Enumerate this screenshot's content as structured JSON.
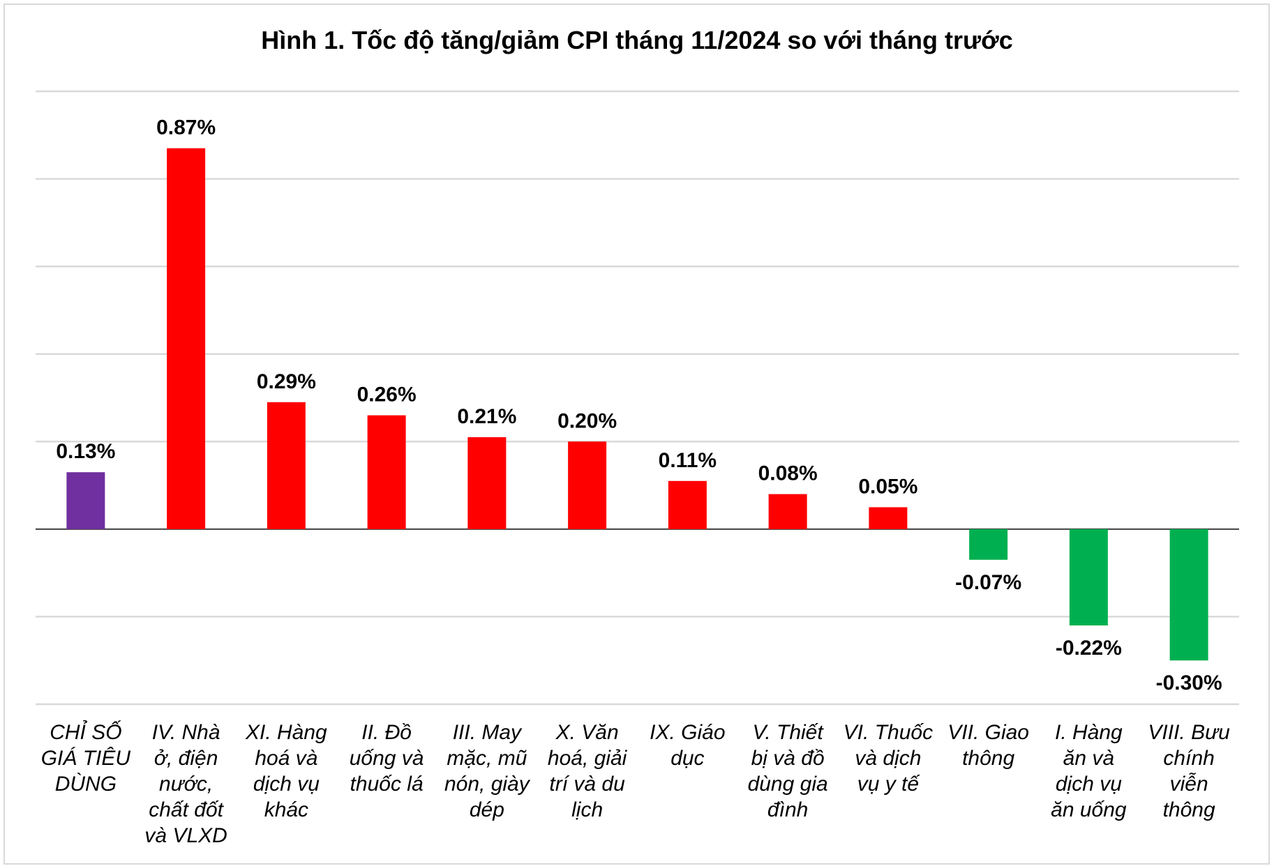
{
  "chart_data": {
    "type": "bar",
    "title": "Hình 1. Tốc độ tăng/giảm CPI tháng 11/2024 so với tháng trước",
    "xlabel": "",
    "ylabel": "",
    "ylim": [
      -0.4,
      1.0
    ],
    "grid": true,
    "categories": [
      [
        "CHỈ SỐ",
        "GIÁ TIÊU",
        "DÙNG"
      ],
      [
        "IV. Nhà",
        "ở, điện",
        "nước,",
        "chất đốt",
        "và VLXD"
      ],
      [
        "XI. Hàng",
        "hoá và",
        "dịch vụ",
        "khác"
      ],
      [
        "II. Đồ",
        "uống và",
        "thuốc lá"
      ],
      [
        "III. May",
        "mặc, mũ",
        "nón, giày",
        "dép"
      ],
      [
        "X. Văn",
        "hoá, giải",
        "trí và du",
        "lịch"
      ],
      [
        "IX. Giáo",
        "dục"
      ],
      [
        "V. Thiết",
        "bị và đồ",
        "dùng gia",
        "đình"
      ],
      [
        "VI. Thuốc",
        "và dịch",
        "vụ y tế"
      ],
      [
        "VII. Giao",
        "thông"
      ],
      [
        "I. Hàng",
        "ăn và",
        "dịch vụ",
        "ăn uống"
      ],
      [
        "VIII. Bưu",
        "chính",
        "viễn",
        "thông"
      ]
    ],
    "values": [
      0.13,
      0.87,
      0.29,
      0.26,
      0.21,
      0.2,
      0.11,
      0.08,
      0.05,
      -0.07,
      -0.22,
      -0.3
    ],
    "data_labels": [
      "0.13%",
      "0.87%",
      "0.29%",
      "0.26%",
      "0.21%",
      "0.20%",
      "0.11%",
      "0.08%",
      "0.05%",
      "-0.07%",
      "-0.22%",
      "-0.30%"
    ],
    "colors": {
      "total": "#7030A0",
      "positive": "#FF0000",
      "negative": "#00B050",
      "grid": "#D9D9D9",
      "axis": "#404040"
    }
  }
}
